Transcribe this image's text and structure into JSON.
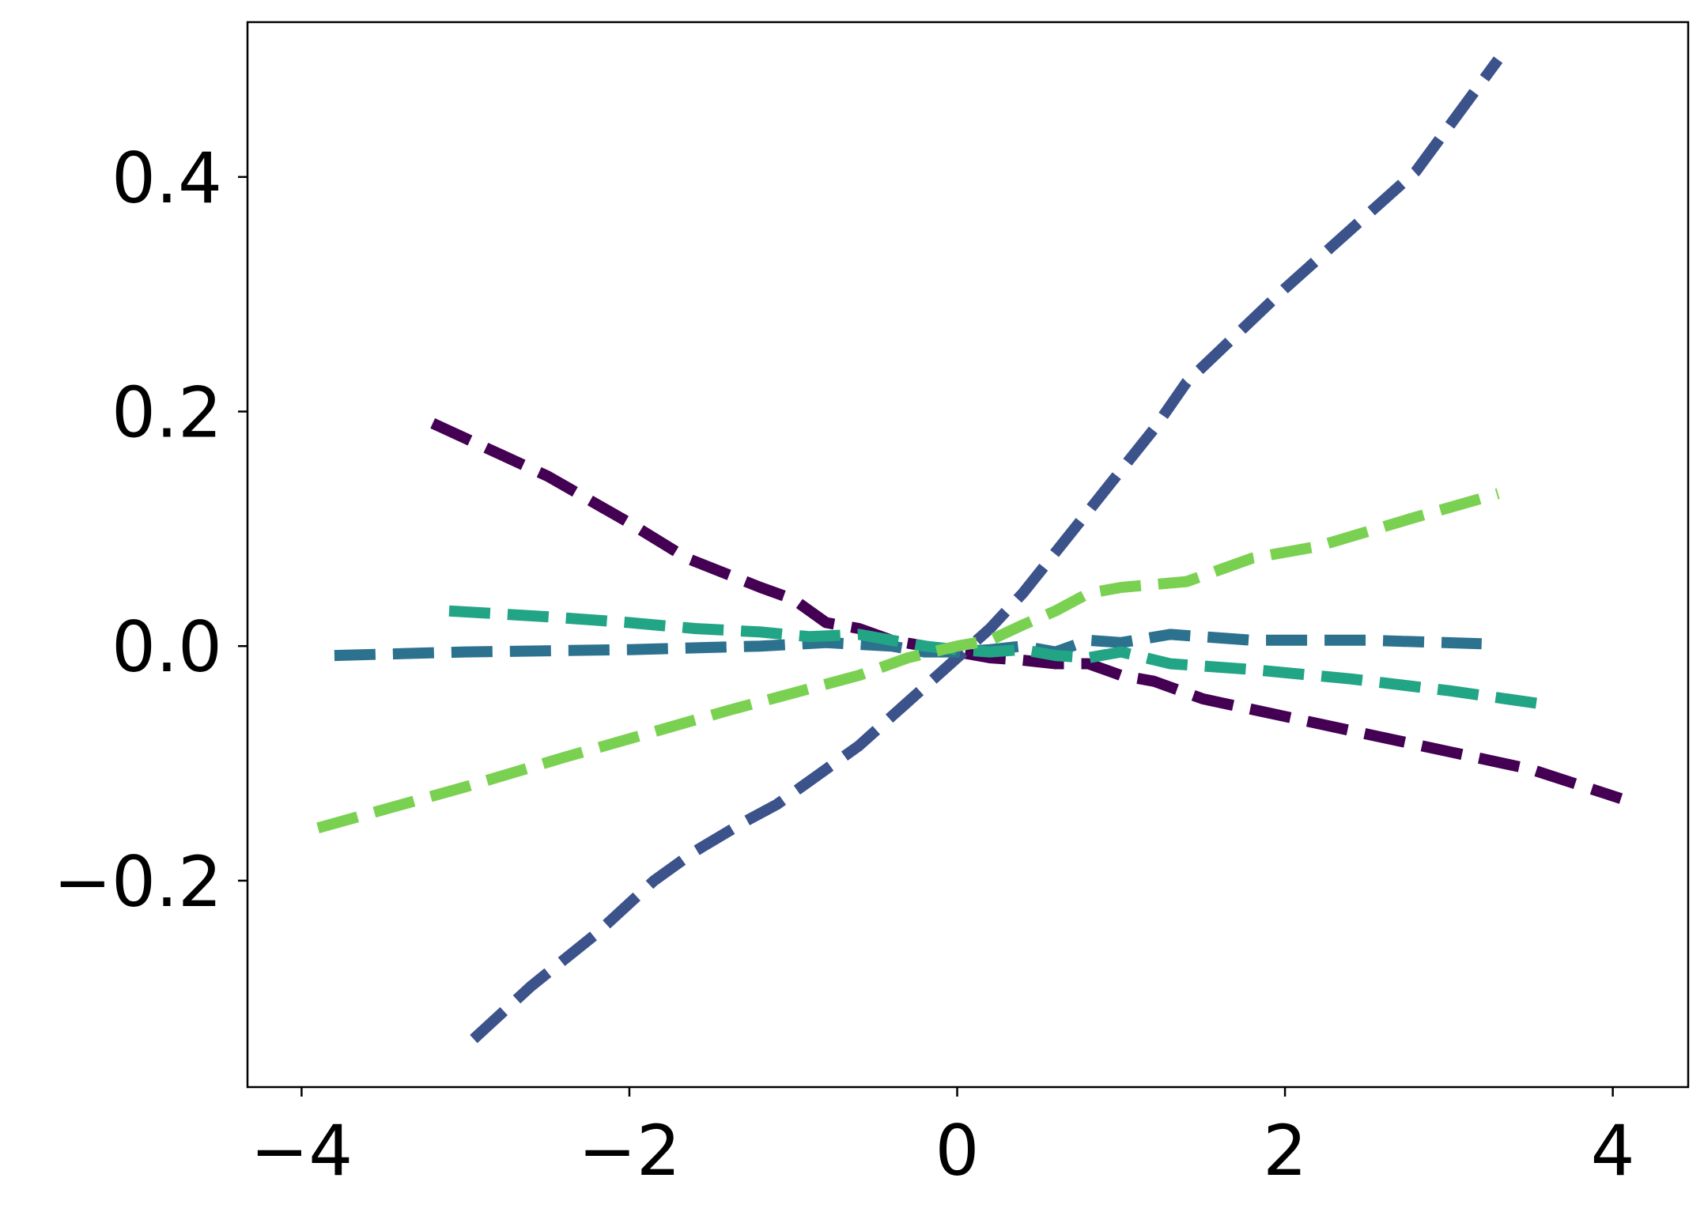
{
  "chart_data": {
    "type": "line",
    "title": "",
    "xlabel": "",
    "ylabel": "",
    "xlim": [
      -4.33,
      4.46
    ],
    "ylim": [
      -0.376,
      0.532
    ],
    "xticks": [
      -4,
      -2,
      0,
      2,
      4
    ],
    "xtick_labels": [
      "−4",
      "−2",
      "0",
      "2",
      "4"
    ],
    "yticks": [
      -0.2,
      0.0,
      0.2,
      0.4
    ],
    "ytick_labels": [
      "−0.2",
      "0.0",
      "0.2",
      "0.4"
    ],
    "grid": false,
    "legend": "none",
    "line_style": "dashed",
    "series": [
      {
        "color": "#440154",
        "x": [
          -3.2,
          -2.5,
          -2.0,
          -1.65,
          -1.2,
          -1.0,
          -0.8,
          -0.6,
          -0.4,
          -0.2,
          0.0,
          0.2,
          0.4,
          0.6,
          0.8,
          1.0,
          1.2,
          1.5,
          2.0,
          2.5,
          3.0,
          3.5,
          4.05
        ],
        "y": [
          0.19,
          0.145,
          0.105,
          0.075,
          0.05,
          0.04,
          0.02,
          0.015,
          0.005,
          0.0,
          -0.005,
          -0.01,
          -0.012,
          -0.015,
          -0.015,
          -0.025,
          -0.03,
          -0.045,
          -0.06,
          -0.075,
          -0.09,
          -0.105,
          -0.13
        ]
      },
      {
        "color": "#3b528b",
        "x": [
          -2.95,
          -2.6,
          -2.2,
          -1.85,
          -1.6,
          -1.3,
          -1.1,
          -0.85,
          -0.6,
          -0.4,
          -0.2,
          0.0,
          0.2,
          0.4,
          0.6,
          0.8,
          1.0,
          1.2,
          1.4,
          1.7,
          2.0,
          2.4,
          2.8,
          3.3
        ],
        "y": [
          -0.335,
          -0.29,
          -0.245,
          -0.2,
          -0.175,
          -0.15,
          -0.135,
          -0.11,
          -0.085,
          -0.06,
          -0.035,
          -0.01,
          0.015,
          0.045,
          0.08,
          0.115,
          0.15,
          0.185,
          0.225,
          0.265,
          0.305,
          0.355,
          0.405,
          0.5
        ]
      },
      {
        "color": "#2c728e",
        "x": [
          -3.8,
          -3.0,
          -2.0,
          -1.2,
          -0.8,
          -0.4,
          -0.2,
          0.0,
          0.2,
          0.4,
          0.6,
          0.8,
          1.0,
          1.3,
          1.8,
          2.5,
          3.2
        ],
        "y": [
          -0.008,
          -0.005,
          -0.003,
          0.0,
          0.003,
          0.0,
          -0.005,
          -0.005,
          -0.003,
          0.0,
          -0.005,
          0.005,
          0.003,
          0.01,
          0.005,
          0.005,
          0.002
        ]
      },
      {
        "color": "#21a585",
        "x": [
          -3.1,
          -2.5,
          -2.0,
          -1.6,
          -1.2,
          -0.9,
          -0.6,
          -0.4,
          -0.2,
          0.0,
          0.2,
          0.4,
          0.6,
          0.8,
          1.0,
          1.3,
          1.8,
          2.4,
          3.0,
          3.6
        ],
        "y": [
          0.03,
          0.025,
          0.02,
          0.015,
          0.012,
          0.008,
          0.01,
          0.005,
          0.0,
          -0.003,
          -0.005,
          -0.003,
          -0.008,
          -0.01,
          -0.005,
          -0.015,
          -0.02,
          -0.028,
          -0.038,
          -0.05
        ]
      },
      {
        "color": "#7ad151",
        "x": [
          -3.9,
          -3.0,
          -2.4,
          -1.9,
          -1.4,
          -1.0,
          -0.6,
          -0.3,
          0.0,
          0.2,
          0.4,
          0.6,
          0.8,
          1.0,
          1.4,
          1.8,
          2.2,
          2.8,
          3.3
        ],
        "y": [
          -0.155,
          -0.12,
          -0.095,
          -0.075,
          -0.055,
          -0.04,
          -0.025,
          -0.01,
          0.0,
          0.005,
          0.018,
          0.03,
          0.045,
          0.05,
          0.055,
          0.075,
          0.085,
          0.11,
          0.13
        ]
      }
    ]
  }
}
